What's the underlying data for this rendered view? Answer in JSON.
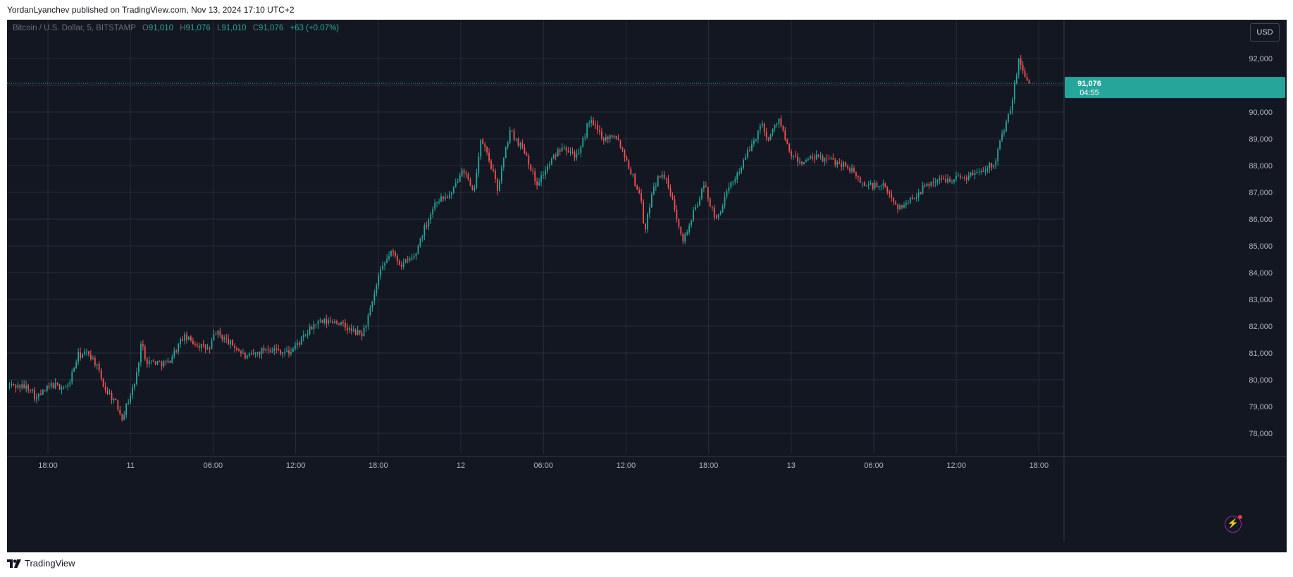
{
  "publish_info": "YordanLyanchev published on TradingView.com, Nov 13, 2024 17:10 UTC+2",
  "legend": {
    "symbol": "Bitcoin / U.S. Dollar, 5, BITSTAMP",
    "o_label": "O",
    "o_value": "91,010",
    "h_label": "H",
    "h_value": "91,076",
    "l_label": "L",
    "l_value": "91,010",
    "c_label": "C",
    "c_value": "91,076",
    "change": "+63 (+0.07%)"
  },
  "currency_button": "USD",
  "price_tag": {
    "price": "91,076",
    "countdown": "04:55"
  },
  "brand_text": "TradingView",
  "colors": {
    "up": "#26a69a",
    "down": "#ef5350",
    "background": "#131722",
    "grid": "#2a2e39",
    "axis_text": "#b2b5be"
  },
  "chart_data": {
    "type": "candlestick",
    "symbol": "Bitcoin / U.S. Dollar",
    "interval": "5",
    "exchange": "BITSTAMP",
    "currency": "USD",
    "ylim": [
      77500,
      93000
    ],
    "y_ticks": [
      "78,000",
      "79,000",
      "80,000",
      "81,000",
      "82,000",
      "83,000",
      "84,000",
      "85,000",
      "86,000",
      "87,000",
      "88,000",
      "89,000",
      "90,000",
      "91,000",
      "92,000"
    ],
    "x_ticks": [
      "18:00",
      "11",
      "06:00",
      "12:00",
      "18:00",
      "12",
      "06:00",
      "12:00",
      "18:00",
      "13",
      "06:00",
      "12:00",
      "18:00"
    ],
    "last_price": 91076,
    "price_path": [
      [
        0,
        79800
      ],
      [
        0.02,
        79700
      ],
      [
        0.025,
        79300
      ],
      [
        0.04,
        79800
      ],
      [
        0.055,
        79700
      ],
      [
        0.065,
        80900
      ],
      [
        0.075,
        81000
      ],
      [
        0.082,
        80600
      ],
      [
        0.09,
        79700
      ],
      [
        0.1,
        79200
      ],
      [
        0.107,
        78600
      ],
      [
        0.12,
        80000
      ],
      [
        0.125,
        81400
      ],
      [
        0.13,
        80700
      ],
      [
        0.15,
        80600
      ],
      [
        0.165,
        81600
      ],
      [
        0.175,
        81400
      ],
      [
        0.19,
        81100
      ],
      [
        0.195,
        81800
      ],
      [
        0.215,
        81200
      ],
      [
        0.225,
        80800
      ],
      [
        0.245,
        81200
      ],
      [
        0.265,
        81000
      ],
      [
        0.28,
        81600
      ],
      [
        0.29,
        82100
      ],
      [
        0.31,
        82200
      ],
      [
        0.325,
        81800
      ],
      [
        0.335,
        81700
      ],
      [
        0.345,
        82900
      ],
      [
        0.35,
        83800
      ],
      [
        0.362,
        84800
      ],
      [
        0.372,
        84300
      ],
      [
        0.385,
        84600
      ],
      [
        0.39,
        85300
      ],
      [
        0.405,
        86700
      ],
      [
        0.42,
        86900
      ],
      [
        0.43,
        88000
      ],
      [
        0.44,
        86900
      ],
      [
        0.448,
        89000
      ],
      [
        0.458,
        87900
      ],
      [
        0.463,
        87100
      ],
      [
        0.475,
        89300
      ],
      [
        0.49,
        88500
      ],
      [
        0.5,
        87300
      ],
      [
        0.51,
        87900
      ],
      [
        0.525,
        88800
      ],
      [
        0.54,
        88300
      ],
      [
        0.55,
        89700
      ],
      [
        0.565,
        89000
      ],
      [
        0.575,
        89200
      ],
      [
        0.585,
        88300
      ],
      [
        0.6,
        86700
      ],
      [
        0.603,
        85400
      ],
      [
        0.61,
        87100
      ],
      [
        0.62,
        87800
      ],
      [
        0.63,
        86600
      ],
      [
        0.64,
        85200
      ],
      [
        0.65,
        86300
      ],
      [
        0.66,
        87300
      ],
      [
        0.67,
        85900
      ],
      [
        0.685,
        87300
      ],
      [
        0.695,
        88000
      ],
      [
        0.705,
        88800
      ],
      [
        0.715,
        89600
      ],
      [
        0.72,
        88900
      ],
      [
        0.73,
        89800
      ],
      [
        0.74,
        88500
      ],
      [
        0.75,
        88100
      ],
      [
        0.765,
        88300
      ],
      [
        0.78,
        88200
      ],
      [
        0.795,
        88000
      ],
      [
        0.81,
        87300
      ],
      [
        0.83,
        87200
      ],
      [
        0.845,
        86400
      ],
      [
        0.86,
        86900
      ],
      [
        0.875,
        87400
      ],
      [
        0.89,
        87500
      ],
      [
        0.91,
        87600
      ],
      [
        0.925,
        87900
      ],
      [
        0.935,
        88100
      ],
      [
        0.942,
        89100
      ],
      [
        0.95,
        90000
      ],
      [
        0.958,
        91900
      ],
      [
        0.963,
        91500
      ],
      [
        0.968,
        91076
      ]
    ]
  }
}
